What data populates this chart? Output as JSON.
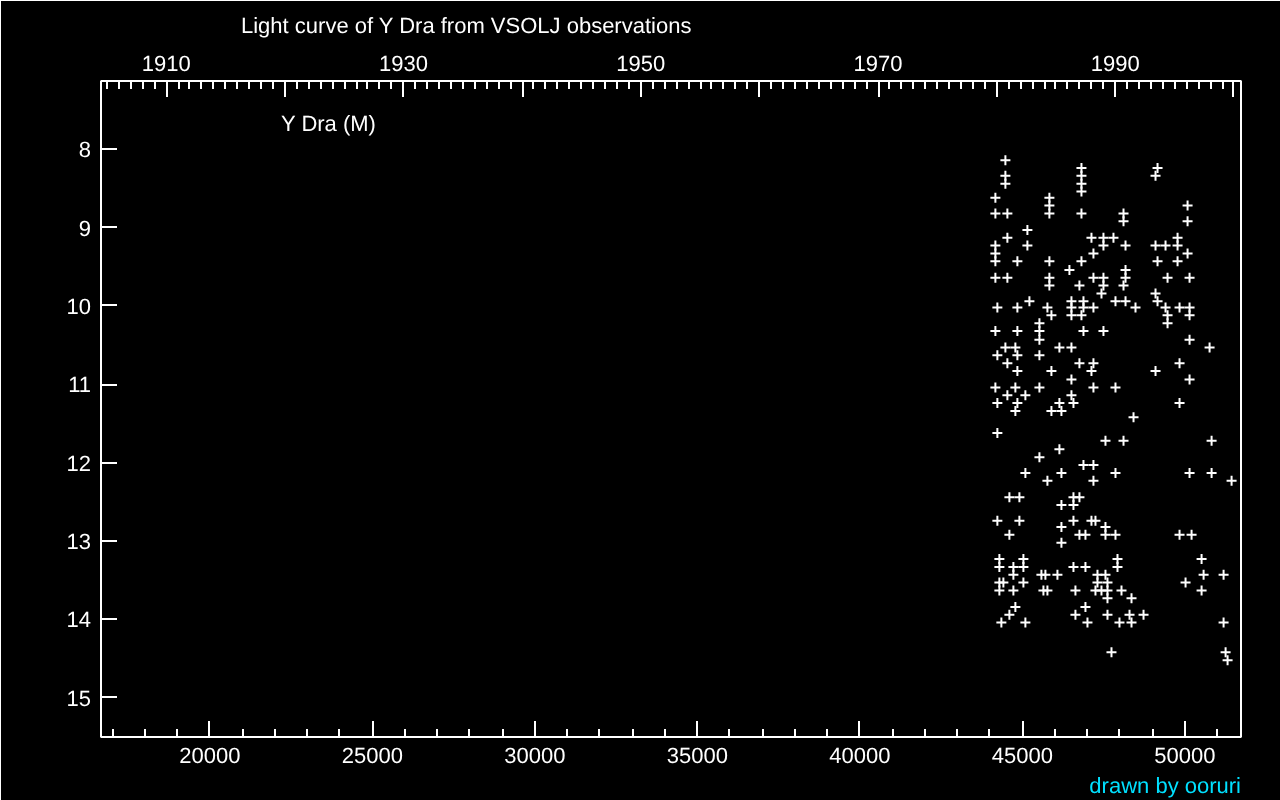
{
  "chart_data": {
    "type": "scatter",
    "title": "Light curve of Y Dra from VSOLJ observations",
    "annotations": [
      "Y Dra (M)",
      "drawn by ooruri"
    ],
    "series": [
      {
        "color": "#ffffff",
        "x": [
          44476,
          44476,
          44476,
          44168,
          44168,
          44537,
          46816,
          46816,
          46816,
          46816,
          45830,
          45830,
          45830,
          46816,
          45153,
          44537,
          44168,
          44168,
          44168,
          45153,
          44845,
          45830,
          46816,
          47124,
          47493,
          47801,
          47493,
          47185,
          44168,
          44537,
          45830,
          46446,
          47185,
          47493,
          45830,
          46754,
          47493,
          47432,
          45215,
          46508,
          46878,
          47863,
          44229,
          44845,
          45769,
          46508,
          46878,
          47185,
          45523,
          45892,
          46508,
          46816,
          45523,
          45523,
          44168,
          44845,
          46878,
          47493,
          44476,
          44783,
          46138,
          46508,
          44229,
          44845,
          45523,
          44537,
          46754,
          47185,
          44845,
          45892,
          47124,
          46508,
          44168,
          44783,
          45523,
          47185,
          47863,
          44537,
          45091,
          46508,
          44229,
          44845,
          46138,
          46570,
          44783,
          45892,
          46200,
          44229,
          47555,
          46138,
          45523,
          46878,
          47185,
          45091,
          46200,
          47863,
          45769,
          47185,
          44599,
          44907,
          46570,
          46754,
          46200,
          46570,
          44229,
          44907,
          46570,
          47124,
          47247,
          46200,
          47555,
          44599,
          46754,
          46939,
          47555,
          47863,
          46200,
          44291,
          45030,
          47925,
          44291,
          44722,
          45030,
          46570,
          46939,
          47925,
          44722,
          45584,
          45707,
          46077,
          47309,
          47555,
          44291,
          44414,
          45030,
          47309,
          47617,
          44291,
          44722,
          45646,
          45769,
          46631,
          47247,
          47432,
          47617,
          47617,
          44783,
          46939,
          44599,
          46631,
          47617,
          44352,
          45091,
          47001,
          47986,
          47740,
          49157,
          49095,
          50081,
          48110,
          48110,
          50081,
          48172,
          49095,
          49403,
          49773,
          49773,
          50081,
          49157,
          49773,
          48172,
          49465,
          50142,
          48172,
          48110,
          49095,
          49157,
          48172,
          48479,
          49403,
          49834,
          50142,
          49465,
          50142,
          49465,
          50142,
          50758,
          49095,
          49834,
          50142,
          49834,
          48418,
          48110,
          50820,
          50142,
          50820,
          51435,
          49834,
          50204,
          50512,
          50574,
          51189,
          50019,
          50512,
          48356,
          48048,
          48726,
          48295,
          48356,
          51189,
          51251,
          51312
        ],
        "values": [
          8.14,
          8.34,
          8.44,
          8.62,
          8.82,
          8.82,
          8.24,
          8.34,
          8.44,
          8.54,
          8.62,
          8.72,
          8.82,
          8.82,
          9.03,
          9.13,
          9.23,
          9.33,
          9.43,
          9.23,
          9.43,
          9.43,
          9.43,
          9.13,
          9.13,
          9.13,
          9.23,
          9.33,
          9.64,
          9.64,
          9.64,
          9.54,
          9.64,
          9.64,
          9.74,
          9.74,
          9.74,
          9.84,
          9.94,
          9.94,
          9.94,
          9.94,
          10.02,
          10.02,
          10.02,
          10.02,
          10.02,
          10.02,
          10.22,
          10.12,
          10.12,
          10.12,
          10.32,
          10.43,
          10.32,
          10.32,
          10.32,
          10.32,
          10.53,
          10.53,
          10.53,
          10.53,
          10.63,
          10.63,
          10.63,
          10.73,
          10.73,
          10.73,
          10.83,
          10.83,
          10.83,
          10.94,
          11.04,
          11.04,
          11.04,
          11.04,
          11.04,
          11.14,
          11.14,
          11.14,
          11.24,
          11.24,
          11.24,
          11.24,
          11.34,
          11.34,
          11.34,
          11.62,
          11.72,
          11.83,
          11.93,
          12.03,
          12.03,
          12.13,
          12.13,
          12.13,
          12.23,
          12.23,
          12.44,
          12.44,
          12.44,
          12.44,
          12.54,
          12.54,
          12.74,
          12.74,
          12.74,
          12.74,
          12.74,
          12.82,
          12.82,
          12.92,
          12.92,
          12.92,
          12.92,
          12.92,
          13.02,
          13.23,
          13.23,
          13.23,
          13.33,
          13.33,
          13.33,
          13.33,
          13.33,
          13.33,
          13.43,
          13.43,
          13.43,
          13.43,
          13.43,
          13.43,
          13.53,
          13.53,
          13.53,
          13.53,
          13.53,
          13.63,
          13.63,
          13.63,
          13.63,
          13.63,
          13.63,
          13.63,
          13.63,
          13.73,
          13.84,
          13.84,
          13.94,
          13.94,
          13.94,
          14.04,
          14.04,
          14.04,
          14.04,
          14.42,
          8.24,
          8.34,
          8.72,
          8.82,
          8.92,
          8.92,
          9.23,
          9.23,
          9.23,
          9.13,
          9.23,
          9.33,
          9.43,
          9.43,
          9.54,
          9.64,
          9.64,
          9.64,
          9.74,
          9.84,
          9.94,
          9.94,
          10.02,
          10.02,
          10.02,
          10.02,
          10.12,
          10.12,
          10.22,
          10.43,
          10.53,
          10.83,
          10.73,
          10.94,
          11.24,
          11.42,
          11.72,
          11.72,
          12.13,
          12.13,
          12.23,
          12.92,
          12.92,
          13.23,
          13.43,
          13.43,
          13.53,
          13.63,
          13.73,
          13.63,
          13.94,
          13.94,
          14.04,
          14.04,
          14.42,
          14.52
        ]
      }
    ],
    "xlim": [
      16649,
      51725
    ],
    "xticks": [
      20000,
      25000,
      30000,
      35000,
      40000,
      45000,
      50000
    ],
    "ylim": [
      15.5,
      7.13
    ],
    "yticks": [
      8,
      9,
      10,
      11,
      12,
      13,
      14,
      15
    ],
    "x2lim": [
      1904.5,
      2000.6
    ],
    "x2ticks": [
      1910,
      {
        "value": 1920,
        "label": null
      },
      1930,
      {
        "value": 1940,
        "label": null
      },
      1950,
      {
        "value": 1960,
        "label": null
      },
      1970,
      {
        "value": 1980,
        "label": null
      },
      1990,
      {
        "value": 2000,
        "label": null
      }
    ],
    "marker": "cross",
    "grid": false
  }
}
